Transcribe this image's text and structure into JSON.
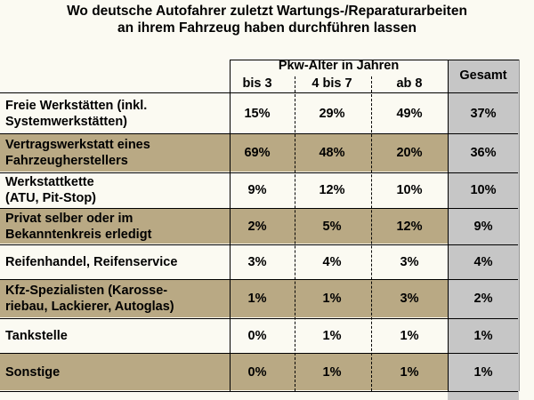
{
  "title_lines": [
    "Wo deutsche Autofahrer zuletzt Wartungs-/Reparaturarbeiten",
    "an ihrem Fahrzeug haben durchführen lassen"
  ],
  "colors": {
    "band": "#b9a984",
    "gesamt_column": "#c6c6c6",
    "background": "#fbfaf2"
  },
  "chart_data": {
    "type": "table",
    "title": "Wo deutsche Autofahrer zuletzt Wartungs-/Reparaturarbeiten an ihrem Fahrzeug haben durchführen lassen",
    "group_header": "Pkw-Alter in Jahren",
    "columns": [
      "bis 3",
      "4 bis 7",
      "ab 8"
    ],
    "total_header": "Gesamt",
    "rows": [
      {
        "label": [
          "Freie Werkstätten (inkl.",
          "Systemwerkstätten)"
        ],
        "values": [
          "15%",
          "29%",
          "49%"
        ],
        "total": "37%",
        "shaded": false
      },
      {
        "label": [
          "Vertragswerkstatt eines",
          "Fahrzeugherstellers"
        ],
        "values": [
          "69%",
          "48%",
          "20%"
        ],
        "total": "36%",
        "shaded": true
      },
      {
        "label": [
          "Werkstattkette",
          "(ATU, Pit-Stop)"
        ],
        "values": [
          "9%",
          "12%",
          "10%"
        ],
        "total": "10%",
        "shaded": false
      },
      {
        "label": [
          "Privat selber oder im",
          "Bekanntenkreis erledigt"
        ],
        "values": [
          "2%",
          "5%",
          "12%"
        ],
        "total": "9%",
        "shaded": true
      },
      {
        "label": [
          "Reifenhandel, Reifenservice"
        ],
        "values": [
          "3%",
          "4%",
          "3%"
        ],
        "total": "4%",
        "shaded": false
      },
      {
        "label": [
          "Kfz-Spezialisten (Karosse-",
          "riebau, Lackierer, Autoglas)"
        ],
        "values": [
          "1%",
          "1%",
          "3%"
        ],
        "total": "2%",
        "shaded": true
      },
      {
        "label": [
          "Tankstelle"
        ],
        "values": [
          "0%",
          "1%",
          "1%"
        ],
        "total": "1%",
        "shaded": false
      },
      {
        "label": [
          "Sonstige"
        ],
        "values": [
          "0%",
          "1%",
          "1%"
        ],
        "total": "1%",
        "shaded": true
      }
    ]
  }
}
